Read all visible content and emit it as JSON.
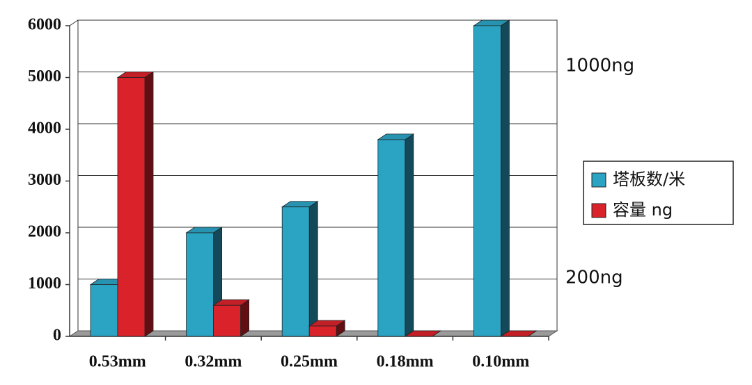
{
  "chart_data": {
    "type": "bar3d",
    "categories": [
      "0.53mm",
      "0.32mm",
      "0.25mm",
      "0.18mm",
      "0.10mm"
    ],
    "series": [
      {
        "name": "塔板数/米",
        "color": "#2ba3c3",
        "values": [
          1000,
          2000,
          2500,
          3800,
          6000
        ]
      },
      {
        "name": "容量 ng",
        "color": "#d9222a",
        "values": [
          5000,
          600,
          200,
          0,
          0
        ]
      }
    ],
    "ylim": [
      0,
      6000
    ],
    "yticks": [
      0,
      1000,
      2000,
      3000,
      4000,
      5000,
      6000
    ],
    "grid": true,
    "annotations": [
      "1000ng",
      "200ng"
    ],
    "legend": "right"
  }
}
